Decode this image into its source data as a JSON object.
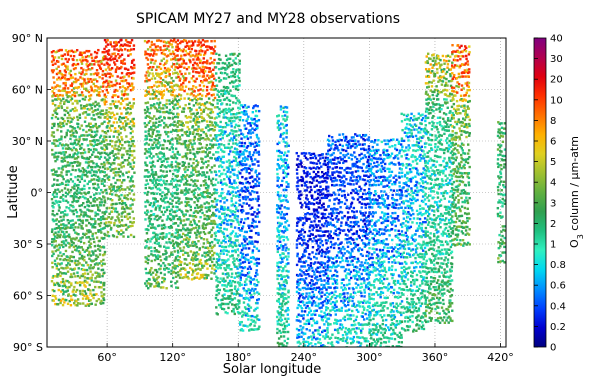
{
  "chart_data": {
    "type": "scatter",
    "title": "SPICAM MY27 and MY28 observations",
    "xlabel": "Solar longitude",
    "ylabel": "Latitude",
    "xlim": [
      5,
      425
    ],
    "ylim": [
      -90,
      90
    ],
    "x_ticks": [
      {
        "value": 60,
        "label": "60°"
      },
      {
        "value": 120,
        "label": "120°"
      },
      {
        "value": 180,
        "label": "180°"
      },
      {
        "value": 240,
        "label": "240°"
      },
      {
        "value": 300,
        "label": "300°"
      },
      {
        "value": 360,
        "label": "360°"
      },
      {
        "value": 420,
        "label": "420°"
      }
    ],
    "y_ticks": [
      {
        "value": 90,
        "label": "90° N"
      },
      {
        "value": 60,
        "label": "60° N"
      },
      {
        "value": 30,
        "label": "30° N"
      },
      {
        "value": 0,
        "label": "0°"
      },
      {
        "value": -30,
        "label": "30° S"
      },
      {
        "value": -60,
        "label": "60° S"
      },
      {
        "value": -90,
        "label": "90° S"
      }
    ],
    "grid": true,
    "colorbar": {
      "label": "O3 column / μm-atm",
      "label_main": "O",
      "label_sub": "3",
      "label_rest": " column / μm-atm",
      "ticks": [
        "0",
        "0.2",
        "0.4",
        "0.6",
        "0.8",
        "1",
        "2",
        "3",
        "4",
        "5",
        "6",
        "8",
        "10",
        "20",
        "30",
        "40"
      ],
      "colors": [
        "#00007f",
        "#0000d0",
        "#0040ff",
        "#0090ff",
        "#00d8f0",
        "#30f0c0",
        "#20c080",
        "#30a050",
        "#60b040",
        "#a0c030",
        "#e0d020",
        "#ffb000",
        "#ff7000",
        "#ff3000",
        "#e00010",
        "#b00050",
        "#800080"
      ]
    },
    "observation_bands": [
      {
        "x_start": 10,
        "x_end": 58,
        "lat_min": -65,
        "lat_max": 82,
        "level": 2.2
      },
      {
        "x_start": 58,
        "x_end": 85,
        "lat_min": -25,
        "lat_max": 88,
        "level": 3.0
      },
      {
        "x_start": 95,
        "x_end": 125,
        "lat_min": -55,
        "lat_max": 88,
        "level": 1.8
      },
      {
        "x_start": 125,
        "x_end": 160,
        "lat_min": -50,
        "lat_max": 88,
        "level": 2.5
      },
      {
        "x_start": 160,
        "x_end": 182,
        "lat_min": -70,
        "lat_max": 80,
        "level": 0.8
      },
      {
        "x_start": 182,
        "x_end": 200,
        "lat_min": -80,
        "lat_max": 50,
        "level": 0.4
      },
      {
        "x_start": 216,
        "x_end": 226,
        "lat_min": -90,
        "lat_max": 50,
        "level": 0.6
      },
      {
        "x_start": 234,
        "x_end": 262,
        "lat_min": -90,
        "lat_max": 22,
        "level": 0.25
      },
      {
        "x_start": 262,
        "x_end": 300,
        "lat_min": -90,
        "lat_max": 33,
        "level": 0.35
      },
      {
        "x_start": 300,
        "x_end": 330,
        "lat_min": -90,
        "lat_max": 30,
        "level": 0.5
      },
      {
        "x_start": 330,
        "x_end": 352,
        "lat_min": -80,
        "lat_max": 45,
        "level": 0.7
      },
      {
        "x_start": 352,
        "x_end": 376,
        "lat_min": -75,
        "lat_max": 80,
        "level": 1.2
      },
      {
        "x_start": 376,
        "x_end": 392,
        "lat_min": -30,
        "lat_max": 85,
        "level": 2.5
      },
      {
        "x_start": 418,
        "x_end": 424,
        "lat_min": -40,
        "lat_max": 40,
        "level": 2.0
      }
    ]
  }
}
